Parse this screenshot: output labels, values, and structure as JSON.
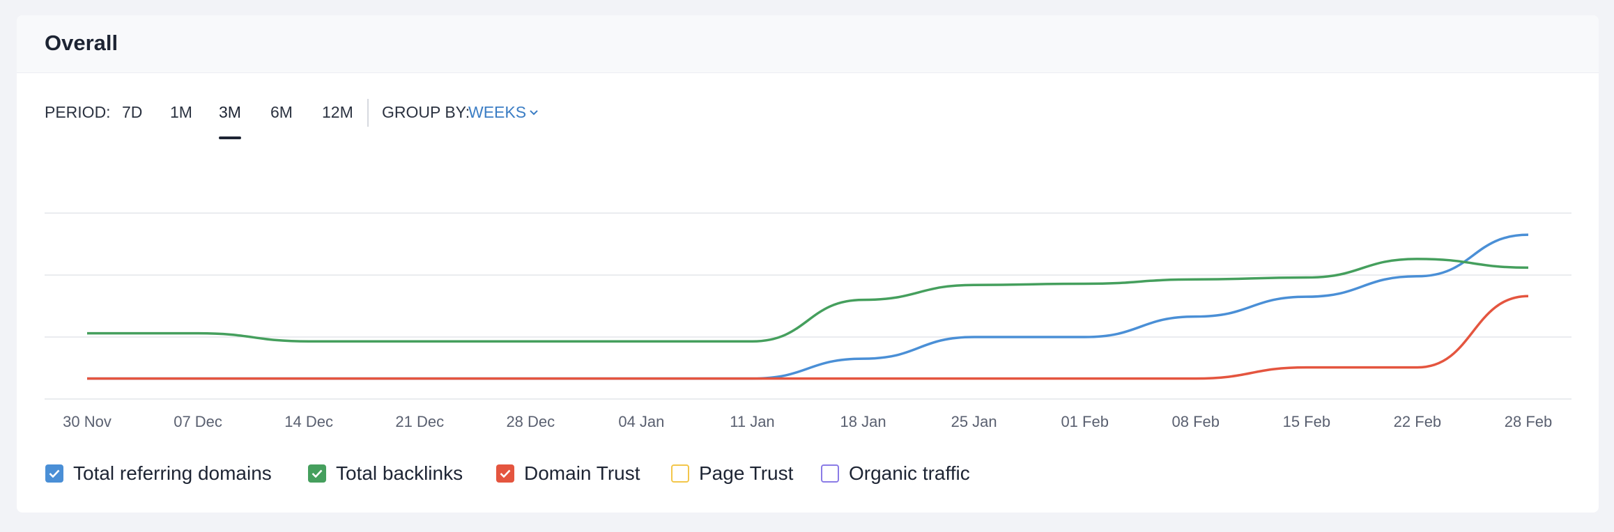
{
  "header": {
    "title": "Overall"
  },
  "controls": {
    "period_label": "PERIOD:",
    "periods": [
      "7D",
      "1M",
      "3M",
      "6M",
      "12M"
    ],
    "active_period": "3M",
    "group_by_label": "GROUP BY:",
    "group_by_value": "WEEKS"
  },
  "chart_data": {
    "type": "line",
    "categories": [
      "30 Nov",
      "07 Dec",
      "14 Dec",
      "21 Dec",
      "28 Dec",
      "04 Jan",
      "11 Jan",
      "18 Jan",
      "25 Jan",
      "01 Feb",
      "08 Feb",
      "15 Feb",
      "22 Feb",
      "28 Feb"
    ],
    "ylim": [
      0,
      3
    ],
    "yticks": [
      0,
      1,
      2,
      3
    ],
    "grid": true,
    "series": [
      {
        "name": "Total referring domains",
        "color": "#4a8fd6",
        "checked": true,
        "values": [
          0.33,
          0.33,
          0.33,
          0.33,
          0.33,
          0.33,
          0.33,
          0.65,
          1.0,
          1.0,
          1.33,
          1.65,
          1.98,
          2.65
        ]
      },
      {
        "name": "Total backlinks",
        "color": "#459f5d",
        "checked": true,
        "values": [
          1.06,
          1.06,
          0.93,
          0.93,
          0.93,
          0.93,
          0.93,
          1.6,
          1.84,
          1.86,
          1.93,
          1.96,
          2.26,
          2.12
        ]
      },
      {
        "name": "Domain Trust",
        "color": "#e4553f",
        "checked": true,
        "values": [
          0.33,
          0.33,
          0.33,
          0.33,
          0.33,
          0.33,
          0.33,
          0.33,
          0.33,
          0.33,
          0.33,
          0.51,
          0.51,
          1.66
        ]
      },
      {
        "name": "Page Trust",
        "color": "#f3c64a",
        "checked": false,
        "values": [
          null,
          null,
          null,
          null,
          null,
          null,
          null,
          null,
          null,
          null,
          null,
          null,
          null,
          null
        ]
      },
      {
        "name": "Organic traffic",
        "color": "#8a7be6",
        "checked": false,
        "values": [
          null,
          null,
          null,
          null,
          null,
          null,
          null,
          null,
          null,
          null,
          null,
          null,
          null,
          null
        ]
      }
    ]
  }
}
